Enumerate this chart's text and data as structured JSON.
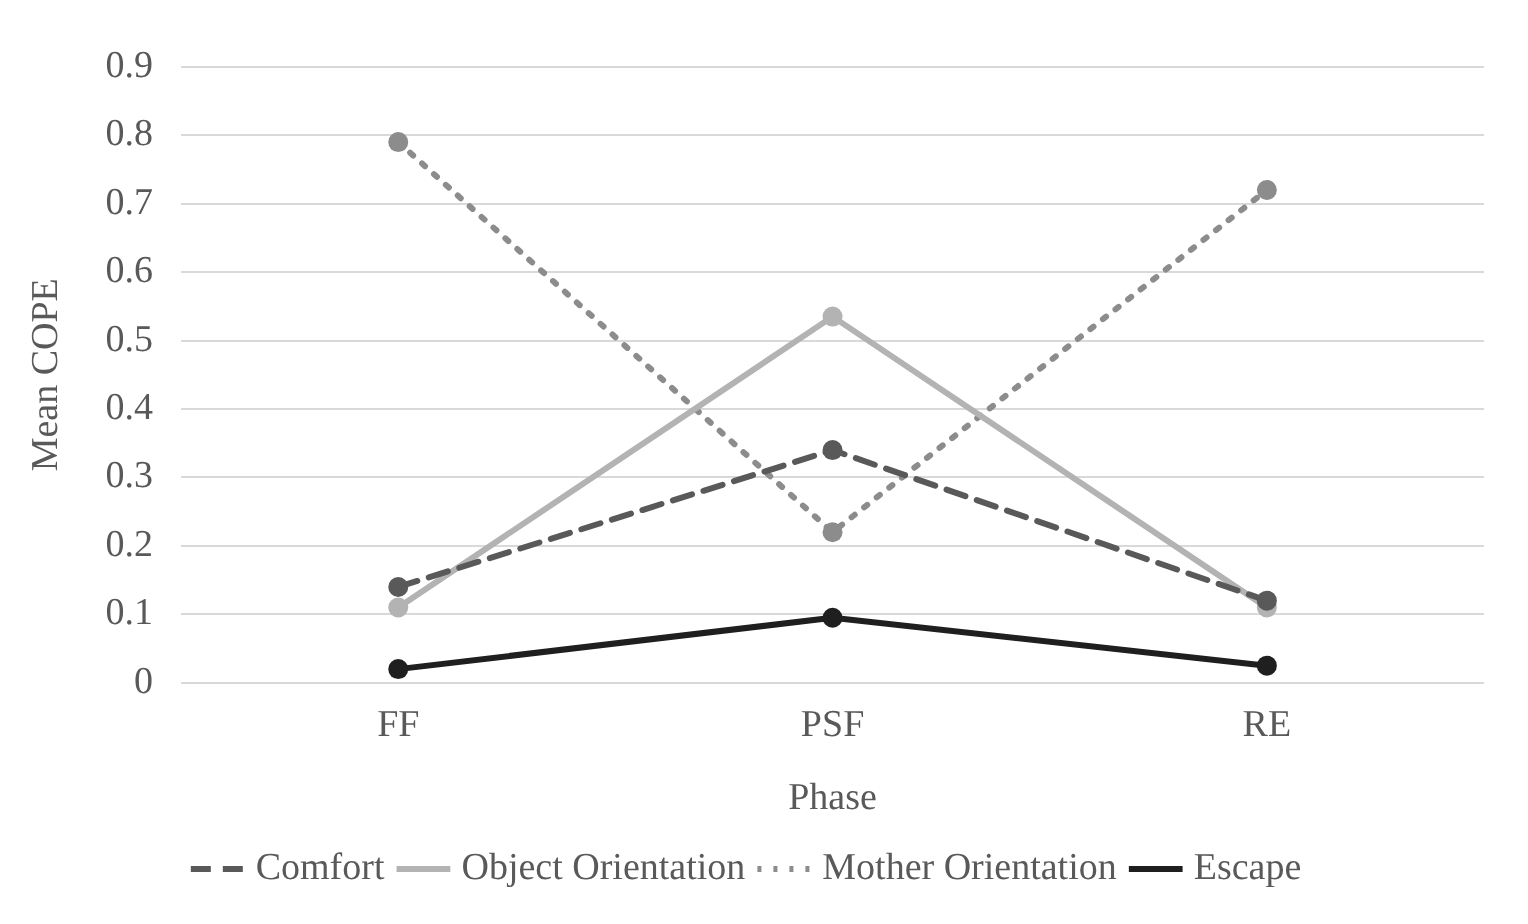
{
  "chart_data": {
    "type": "line",
    "xlabel": "Phase",
    "ylabel": "Mean COPE",
    "categories": [
      "FF",
      "PSF",
      "RE"
    ],
    "series": [
      {
        "name": "Comfort",
        "color": "#595959",
        "line_style": "dashed",
        "values": [
          0.14,
          0.34,
          0.12
        ]
      },
      {
        "name": "Object Orientation",
        "color": "#b3b3b3",
        "line_style": "solid",
        "values": [
          0.11,
          0.535,
          0.11
        ]
      },
      {
        "name": "Mother Orientation",
        "color": "#8c8c8c",
        "line_style": "dotted",
        "values": [
          0.79,
          0.22,
          0.72
        ]
      },
      {
        "name": "Escape",
        "color": "#1f1f1f",
        "line_style": "solid",
        "values": [
          0.02,
          0.095,
          0.025
        ]
      }
    ],
    "ylim": [
      0,
      0.9
    ],
    "yticks": [
      0,
      0.1,
      0.2,
      0.3,
      0.4,
      0.5,
      0.6,
      0.7,
      0.8,
      0.9
    ],
    "grid": "y",
    "legend": "bottom",
    "marker": "circle"
  }
}
